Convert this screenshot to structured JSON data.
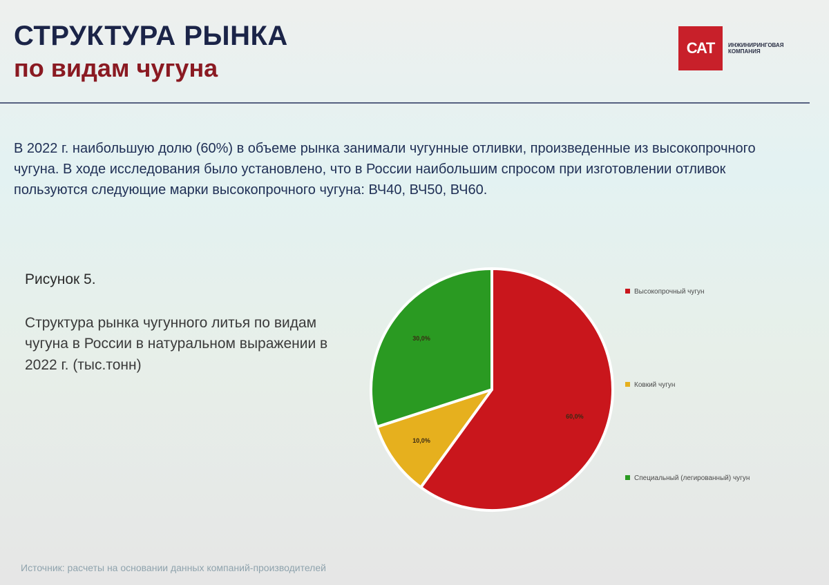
{
  "header": {
    "title_line1": "СТРУКТУРА РЫНКА",
    "title_line2": "по видам чугуна"
  },
  "logo": {
    "mark": "САТ",
    "text": "ИНЖИНИРИНГОВАЯ КОМПАНИЯ",
    "brand_color": "#c8202a"
  },
  "intro_text": "В 2022 г. наибольшую долю (60%) в объеме рынка занимали чугунные отливки, произведенные из высокопрочного чугуна. В ходе исследования было установлено, что в России наибольшим спросом при изготовлении отливок пользуются следующие марки высокопрочного чугуна: ВЧ40, ВЧ50, ВЧ60.",
  "figure": {
    "label": "Рисунок 5.",
    "caption": "Структура рынка чугунного литья по видам чугуна в России в натуральном выражении в 2022 г. (тыс.тонн)"
  },
  "chart_data": {
    "type": "pie",
    "title": "",
    "legend_position": "right",
    "slices": [
      {
        "name": "Высокопрочный чугун",
        "value": 60,
        "label": "60,0%",
        "color": "#c9161c"
      },
      {
        "name": "Ковкий чугун",
        "value": 10,
        "label": "10,0%",
        "color": "#e6b01e"
      },
      {
        "name": "Специальный (легированный) чугун",
        "value": 30,
        "label": "30,0%",
        "color": "#2a9a22"
      }
    ]
  },
  "source_text": "Источник: расчеты на основании данных компаний-производителей"
}
